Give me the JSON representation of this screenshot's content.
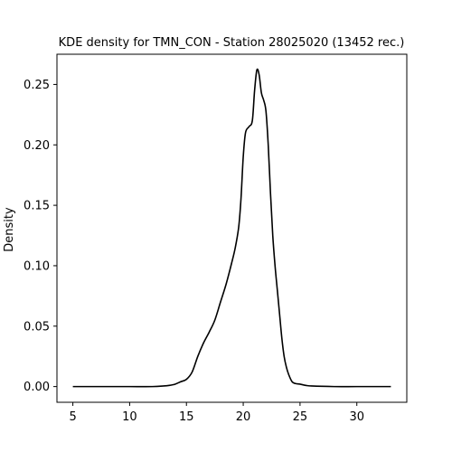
{
  "chart_data": {
    "type": "line",
    "title": "KDE density for TMN_CON - Station 28025020 (13452 rec.)",
    "xlabel": "",
    "ylabel": "Density",
    "xlim": [
      3.6,
      34.4
    ],
    "ylim": [
      -0.013,
      0.275
    ],
    "x_ticks": [
      5,
      10,
      15,
      20,
      25,
      30
    ],
    "x_tick_labels": [
      "5",
      "10",
      "15",
      "20",
      "25",
      "30"
    ],
    "y_ticks": [
      0.0,
      0.05,
      0.1,
      0.15,
      0.2,
      0.25
    ],
    "y_tick_labels": [
      "0.00",
      "0.05",
      "0.10",
      "0.15",
      "0.20",
      "0.25"
    ],
    "grid": false,
    "line_color": "#000000",
    "series": [
      {
        "x": [
          5,
          8,
          10,
          12,
          13,
          13.5,
          14,
          14.5,
          15,
          15.5,
          16,
          16.5,
          17,
          17.5,
          18,
          18.5,
          19,
          19.3,
          19.6,
          19.8,
          20,
          20.2,
          20.5,
          20.8,
          21,
          21.2,
          21.4,
          21.6,
          21.8,
          22,
          22.2,
          22.4,
          22.6,
          22.8,
          23,
          23.2,
          23.4,
          23.6,
          23.8,
          24,
          24.3,
          24.6,
          25,
          25.5,
          26,
          28,
          30,
          33
        ],
        "y": [
          0.0,
          0.0,
          0.0,
          0.0,
          0.0005,
          0.001,
          0.002,
          0.004,
          0.006,
          0.012,
          0.025,
          0.036,
          0.045,
          0.055,
          0.07,
          0.085,
          0.103,
          0.115,
          0.132,
          0.155,
          0.19,
          0.21,
          0.215,
          0.22,
          0.245,
          0.262,
          0.258,
          0.243,
          0.237,
          0.228,
          0.2,
          0.16,
          0.125,
          0.1,
          0.08,
          0.06,
          0.04,
          0.025,
          0.016,
          0.01,
          0.004,
          0.0025,
          0.002,
          0.001,
          0.0005,
          0.0,
          0.0,
          0.0
        ]
      }
    ]
  }
}
